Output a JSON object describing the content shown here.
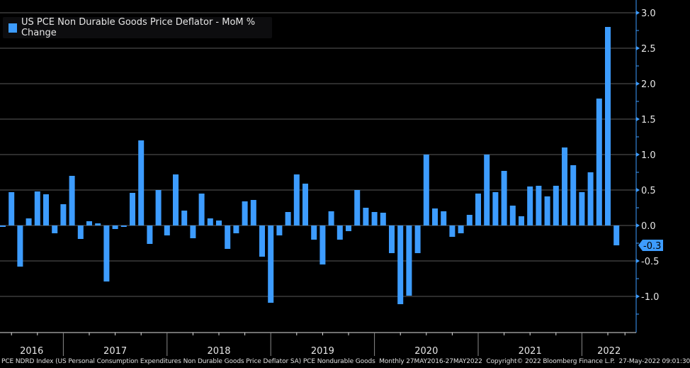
{
  "chart_data": {
    "type": "bar",
    "title": "",
    "legend": [
      {
        "name": "US PCE Non Durable Goods Price Deflator - MoM % Change",
        "color": "#3d9cff"
      }
    ],
    "legend_placement": "top-left",
    "grid": true,
    "y_axis_side": "right",
    "ylim": [
      -1.5,
      3.0
    ],
    "y_ticks": [
      "3.0",
      "2.5",
      "2.0",
      "1.5",
      "1.0",
      "0.5",
      "0.0",
      "-0.5",
      "-1.0"
    ],
    "last_value_label": "-0.3",
    "x_year_labels": [
      "2016",
      "2017",
      "2018",
      "2019",
      "2020",
      "2021",
      "2022"
    ],
    "x_start": "2016-05",
    "x_end": "2022-04",
    "frequency": "Monthly",
    "values": [
      -0.02,
      0.47,
      -0.58,
      0.1,
      0.48,
      0.44,
      -0.11,
      0.3,
      0.7,
      -0.19,
      0.06,
      0.03,
      -0.79,
      -0.05,
      -0.02,
      0.46,
      1.2,
      -0.26,
      0.5,
      -0.14,
      0.72,
      0.21,
      -0.18,
      0.45,
      0.1,
      0.07,
      -0.33,
      -0.11,
      0.34,
      0.36,
      -0.44,
      -1.09,
      -0.14,
      0.19,
      0.72,
      0.59,
      -0.2,
      -0.55,
      0.2,
      -0.2,
      -0.08,
      0.5,
      0.25,
      0.19,
      0.18,
      -0.39,
      -1.11,
      -0.99,
      -0.39,
      1.0,
      0.24,
      0.2,
      -0.16,
      -0.11,
      0.15,
      0.45,
      1.0,
      0.47,
      0.77,
      0.28,
      0.13,
      0.55,
      0.56,
      0.41,
      0.56,
      1.1,
      0.85,
      0.47,
      0.75,
      1.79,
      2.8,
      -0.28
    ]
  },
  "footer": "PCE NDRD Index (US Personal Consumption Expenditures Non Durable Goods Price Deflator SA) PCE Nondurable Goods  Monthly 27MAY2016-27MAY2022  Copyright© 2022 Bloomberg Finance L.P.  27-May-2022 09:01:30"
}
